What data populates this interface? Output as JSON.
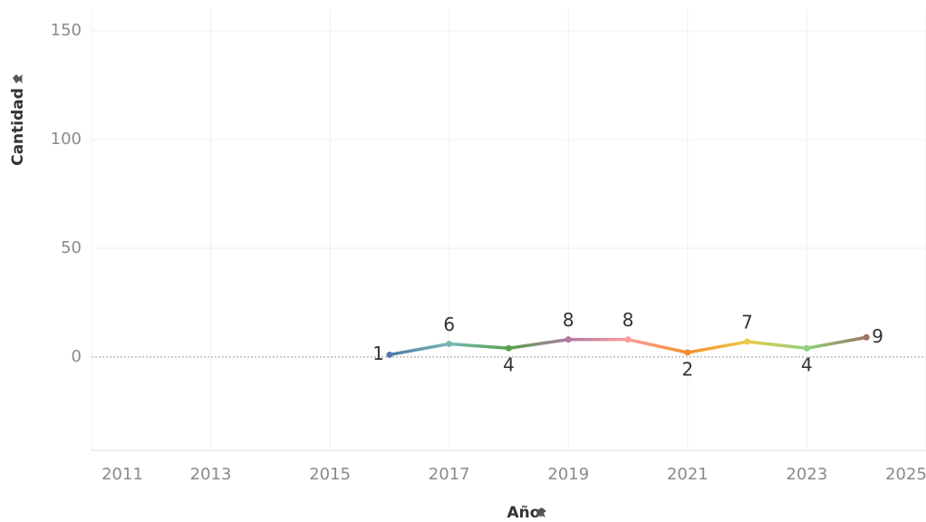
{
  "chart_data": {
    "type": "line",
    "x_label": "Año",
    "y_label": "Cantidad",
    "x": [
      2016,
      2017,
      2018,
      2019,
      2020,
      2021,
      2022,
      2023,
      2024
    ],
    "values": [
      1,
      6,
      4,
      8,
      8,
      2,
      7,
      4,
      9
    ],
    "point_colors": [
      "#4e79a7",
      "#76b7b2",
      "#59a14f",
      "#b07aa1",
      "#ff9d9a",
      "#f28e2b",
      "#edc948",
      "#8cd17d",
      "#9c755f"
    ],
    "xlim": [
      2011,
      2025
    ],
    "xticks": [
      2011,
      2013,
      2015,
      2017,
      2019,
      2021,
      2023,
      2025
    ],
    "ylim": [
      -43,
      160
    ],
    "yticks": [
      0,
      50,
      100,
      150
    ],
    "grid": true
  }
}
